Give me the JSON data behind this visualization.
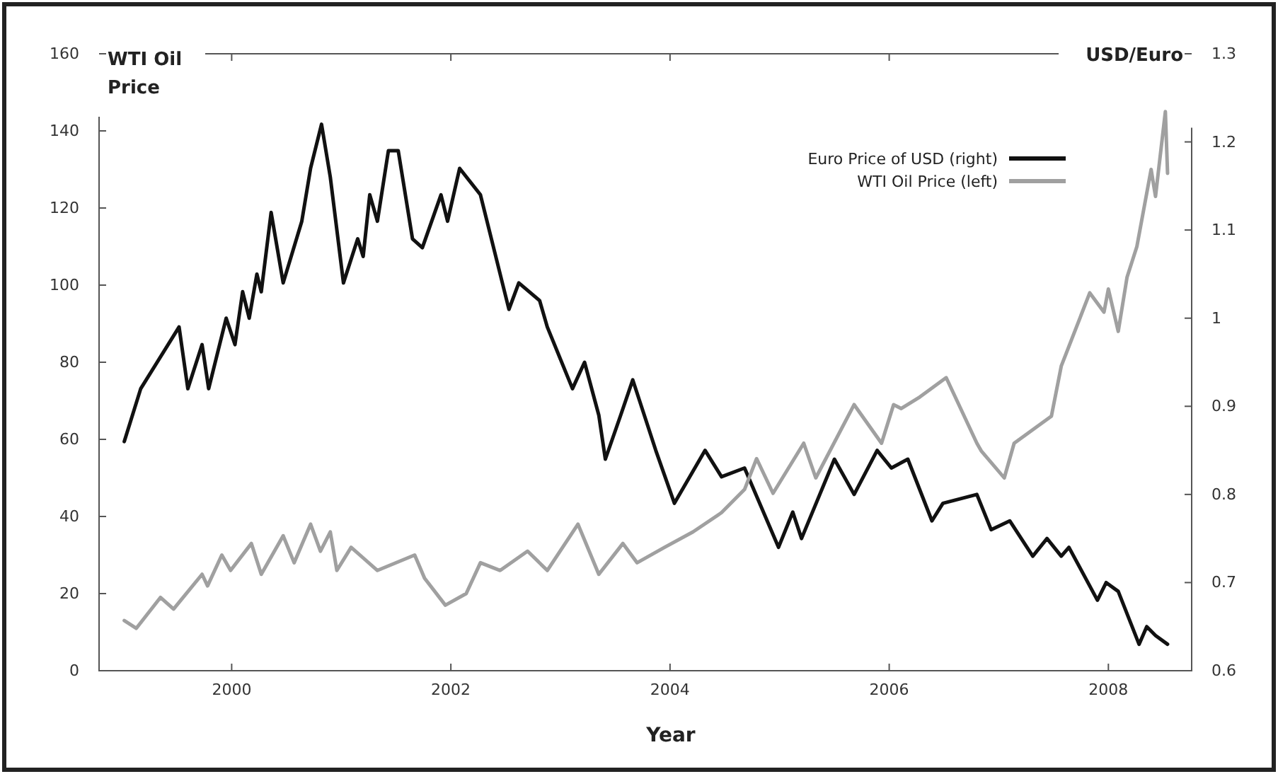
{
  "chart_data": {
    "type": "line",
    "xlabel": "Year",
    "ylabel": "WTI Oil Price",
    "y2label": "USD/Euro",
    "xlim": [
      1998.79,
      2008.76
    ],
    "xticks": [
      2000,
      2002,
      2004,
      2006,
      2008
    ],
    "ylim": [
      0,
      160
    ],
    "yticks": [
      0,
      20,
      40,
      60,
      80,
      100,
      120,
      140,
      160
    ],
    "y2lim": [
      0.6,
      1.3
    ],
    "y2ticks": [
      0.6,
      0.7,
      0.8,
      0.9,
      1,
      1.1,
      1.2,
      1.3
    ],
    "grid": false,
    "legend": "top right",
    "line_style": "solid",
    "marker": "none",
    "series": [
      {
        "name": "Euro Price of USD (right)",
        "color": "#111111",
        "axis": "y2",
        "x": [
          1999.02,
          1999.17,
          1999.52,
          1999.6,
          1999.73,
          1999.79,
          1999.95,
          2000.03,
          2000.1,
          2000.16,
          2000.23,
          2000.27,
          2000.36,
          2000.47,
          2000.64,
          2000.72,
          2000.82,
          2000.9,
          2001.02,
          2001.15,
          2001.2,
          2001.26,
          2001.33,
          2001.43,
          2001.52,
          2001.65,
          2001.74,
          2001.91,
          2001.97,
          2002.08,
          2002.27,
          2002.53,
          2002.62,
          2002.81,
          2002.88,
          2003.11,
          2003.22,
          2003.35,
          2003.41,
          2003.55,
          2003.66,
          2003.87,
          2004.04,
          2004.32,
          2004.47,
          2004.68,
          2004.99,
          2005.12,
          2005.2,
          2005.5,
          2005.68,
          2005.89,
          2006.02,
          2006.17,
          2006.39,
          2006.49,
          2006.8,
          2006.93,
          2007.1,
          2007.31,
          2007.44,
          2007.57,
          2007.64,
          2007.9,
          2007.98,
          2008.09,
          2008.28,
          2008.35,
          2008.43,
          2008.54
        ],
        "values": [
          0.86,
          0.92,
          0.99,
          0.92,
          0.97,
          0.92,
          1.0,
          0.97,
          1.03,
          1.0,
          1.05,
          1.03,
          1.12,
          1.04,
          1.11,
          1.17,
          1.22,
          1.16,
          1.04,
          1.09,
          1.07,
          1.14,
          1.11,
          1.19,
          1.19,
          1.09,
          1.08,
          1.14,
          1.11,
          1.17,
          1.14,
          1.01,
          1.04,
          1.02,
          0.99,
          0.92,
          0.95,
          0.89,
          0.84,
          0.89,
          0.93,
          0.85,
          0.79,
          0.85,
          0.82,
          0.83,
          0.74,
          0.78,
          0.75,
          0.84,
          0.8,
          0.85,
          0.83,
          0.84,
          0.77,
          0.79,
          0.8,
          0.76,
          0.77,
          0.73,
          0.75,
          0.73,
          0.74,
          0.68,
          0.7,
          0.69,
          0.63,
          0.65,
          0.64,
          0.63
        ]
      },
      {
        "name": "WTI Oil Price (left)",
        "color": "#a0a0a0",
        "x": [
          1999.02,
          1999.13,
          1999.35,
          1999.47,
          1999.73,
          1999.78,
          1999.91,
          1999.99,
          2000.18,
          2000.27,
          2000.47,
          2000.57,
          2000.72,
          2000.81,
          2000.9,
          2000.96,
          2001.09,
          2001.33,
          2001.67,
          2001.76,
          2001.95,
          2002.14,
          2002.27,
          2002.45,
          2002.7,
          2002.88,
          2003.16,
          2003.35,
          2003.57,
          2003.7,
          2003.95,
          2004.21,
          2004.47,
          2004.68,
          2004.79,
          2004.94,
          2005.22,
          2005.33,
          2005.68,
          2005.93,
          2006.04,
          2006.11,
          2006.28,
          2006.52,
          2006.8,
          2006.84,
          2007.05,
          2007.14,
          2007.48,
          2007.57,
          2007.83,
          2007.96,
          2008.0,
          2008.09,
          2008.17,
          2008.26,
          2008.39,
          2008.43,
          2008.52,
          2008.54
        ],
        "values": [
          13,
          11,
          19,
          16,
          25,
          22,
          30,
          26,
          33,
          25,
          35,
          28,
          38,
          31,
          36,
          26,
          32,
          26,
          30,
          24,
          17,
          20,
          28,
          26,
          31,
          26,
          38,
          25,
          33,
          28,
          32,
          36,
          41,
          47,
          55,
          46,
          59,
          50,
          69,
          59,
          69,
          68,
          71,
          76,
          59,
          57,
          50,
          59,
          66,
          79,
          98,
          93,
          99,
          88,
          102,
          110,
          130,
          123,
          145,
          129
        ]
      }
    ]
  }
}
